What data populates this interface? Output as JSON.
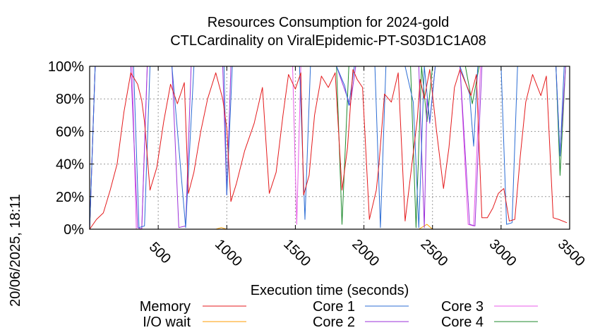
{
  "chart_data": {
    "type": "line",
    "title": "Resources Consumption for 2024-gold",
    "subtitle": "CTLCardinality on ViralEpidemic-PT-S03D1C1A08",
    "xlabel": "Execution time (seconds)",
    "ylabel": "",
    "side_label": "20/06/2025, 18:11",
    "xlim": [
      0,
      3500
    ],
    "ylim": [
      0,
      100
    ],
    "x_ticks": [
      500,
      1000,
      1500,
      2000,
      2500,
      3000,
      3500
    ],
    "x_tick_labels": [
      "500",
      "1000",
      "1500",
      "2000",
      "2500",
      "3000",
      "3500"
    ],
    "y_ticks": [
      0,
      20,
      40,
      60,
      80,
      100
    ],
    "y_tick_labels": [
      "0%",
      "20%",
      "40%",
      "60%",
      "80%",
      "100%"
    ],
    "grid": true,
    "legend_position": "bottom",
    "series": [
      {
        "name": "Memory",
        "color": "#e41a1c",
        "x": [
          0,
          50,
          100,
          150,
          200,
          250,
          300,
          350,
          380,
          400,
          440,
          490,
          540,
          590,
          640,
          690,
          720,
          760,
          810,
          860,
          920,
          970,
          1000,
          1030,
          1070,
          1130,
          1200,
          1260,
          1310,
          1360,
          1410,
          1450,
          1500,
          1540,
          1560,
          1600,
          1640,
          1690,
          1740,
          1790,
          1840,
          1880,
          1920,
          1950,
          1990,
          2040,
          2090,
          2110,
          2150,
          2200,
          2250,
          2300,
          2350,
          2390,
          2410,
          2440,
          2480,
          2530,
          2580,
          2620,
          2660,
          2700,
          2740,
          2780,
          2820,
          2860,
          2900,
          2940,
          2980,
          3020,
          3060,
          3100,
          3140,
          3180,
          3230,
          3290,
          3330,
          3380,
          3420,
          3480
        ],
        "values": [
          0,
          6,
          10,
          24,
          40,
          72,
          96,
          89,
          79,
          66,
          24,
          38,
          66,
          89,
          77,
          90,
          22,
          35,
          60,
          80,
          96,
          80,
          62,
          17,
          28,
          48,
          65,
          87,
          22,
          35,
          70,
          95,
          86,
          96,
          21,
          33,
          70,
          94,
          87,
          96,
          24,
          50,
          98,
          92,
          87,
          6,
          24,
          40,
          83,
          78,
          96,
          5,
          40,
          68,
          92,
          80,
          98,
          60,
          25,
          50,
          87,
          98,
          90,
          82,
          95,
          7,
          7,
          13,
          22,
          25,
          5,
          6,
          45,
          78,
          95,
          82,
          94,
          7,
          6,
          4
        ]
      },
      {
        "name": "I/O wait",
        "color": "#ff9e00",
        "x": [
          0,
          920,
          960,
          1000,
          1040,
          2400,
          2460,
          2500,
          3500
        ],
        "values": [
          0,
          0,
          1,
          0,
          0,
          0,
          3,
          0,
          0
        ]
      },
      {
        "name": "Core 1",
        "color": "#2c6dd4",
        "x": [
          0,
          40,
          200,
          320,
          360,
          400,
          440,
          600,
          700,
          760,
          980,
          1000,
          1040,
          1400,
          1530,
          1570,
          1610,
          1800,
          1860,
          1890,
          1930,
          2030,
          2080,
          2120,
          2160,
          2300,
          2360,
          2400,
          2440,
          2480,
          2520,
          2600,
          2700,
          2770,
          2800,
          2830,
          2880,
          3000,
          3040,
          3080,
          3120,
          3200,
          3400,
          3430,
          3460,
          3500
        ],
        "values": [
          0,
          100,
          100,
          100,
          1,
          2,
          100,
          100,
          1,
          100,
          100,
          21,
          100,
          100,
          100,
          6,
          100,
          100,
          88,
          76,
          100,
          100,
          100,
          1,
          100,
          100,
          78,
          1,
          100,
          66,
          100,
          100,
          100,
          83,
          51,
          100,
          100,
          100,
          3,
          4,
          100,
          100,
          100,
          45,
          100,
          100
        ]
      },
      {
        "name": "Core 2",
        "color": "#9b30d9",
        "x": [
          0,
          40,
          300,
          350,
          380,
          420,
          600,
          650,
          700,
          740,
          970,
          1000,
          1030,
          1580,
          1620,
          1800,
          1850,
          1900,
          1940,
          2000,
          2080,
          2120,
          2400,
          2440,
          2460,
          2480,
          2520,
          2700,
          2770,
          2810,
          2860,
          3000,
          3100,
          3400,
          3430,
          3470,
          3500
        ],
        "values": [
          0,
          100,
          100,
          1,
          0,
          100,
          100,
          1,
          2,
          100,
          100,
          21,
          100,
          100,
          100,
          100,
          88,
          76,
          100,
          100,
          100,
          100,
          100,
          1,
          80,
          65,
          100,
          100,
          3,
          2,
          100,
          100,
          100,
          100,
          45,
          100,
          100
        ]
      },
      {
        "name": "Core 3",
        "color": "#e85be8",
        "x": [
          0,
          40,
          290,
          310,
          340,
          380,
          420,
          1400,
          1480,
          1510,
          1540,
          1800,
          1840,
          1870,
          1900,
          2700,
          2760,
          2800,
          2850,
          3500
        ],
        "values": [
          0,
          100,
          100,
          100,
          0,
          0,
          100,
          100,
          100,
          3,
          100,
          100,
          100,
          100,
          100,
          100,
          3,
          2,
          100,
          100
        ]
      },
      {
        "name": "Core 4",
        "color": "#1f8a2e",
        "x": [
          0,
          40,
          1500,
          1800,
          1840,
          1890,
          2300,
          2340,
          2380,
          2420,
          2460,
          2500,
          2740,
          2790,
          2840,
          3400,
          3430,
          3470,
          3500
        ],
        "values": [
          0,
          100,
          100,
          100,
          3,
          100,
          100,
          100,
          1,
          100,
          66,
          100,
          100,
          77,
          100,
          100,
          33,
          100,
          100
        ]
      }
    ]
  }
}
